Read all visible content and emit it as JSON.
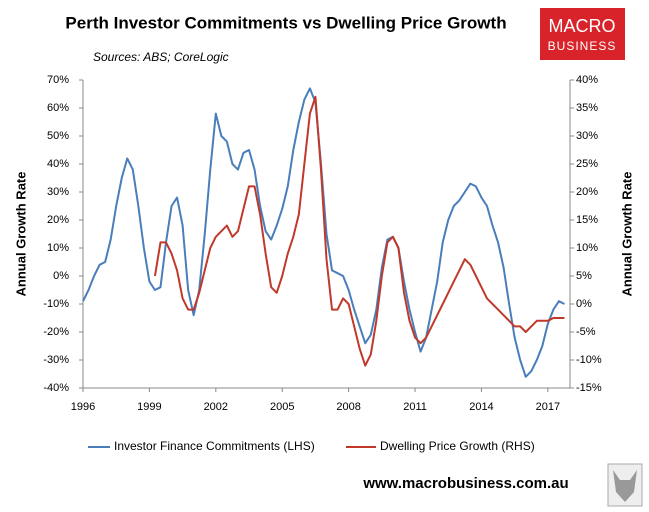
{
  "chart_data": {
    "type": "line",
    "title": "Perth Investor Commitments vs Dwelling Price Growth",
    "subtitle": "Sources: ABS; CoreLogic",
    "y_label": "Annual Growth Rate",
    "y2_label": "Annual Growth Rate",
    "logo_top": "MACRO",
    "logo_bottom": "BUSINESS",
    "website": "www.macrobusiness.com.au",
    "xlim": [
      1996,
      2018
    ],
    "xticks": [
      1996,
      1999,
      2002,
      2005,
      2008,
      2011,
      2014,
      2017
    ],
    "ylim": [
      -40,
      70
    ],
    "yticks": [
      {
        "value": -40,
        "label": "-40%"
      },
      {
        "value": -30,
        "label": "-30%"
      },
      {
        "value": -20,
        "label": "-20%"
      },
      {
        "value": -10,
        "label": "-10%"
      },
      {
        "value": 0,
        "label": "0%"
      },
      {
        "value": 10,
        "label": "10%"
      },
      {
        "value": 20,
        "label": "20%"
      },
      {
        "value": 30,
        "label": "30%"
      },
      {
        "value": 40,
        "label": "40%"
      },
      {
        "value": 50,
        "label": "50%"
      },
      {
        "value": 60,
        "label": "60%"
      },
      {
        "value": 70,
        "label": "70%"
      }
    ],
    "y2lim": [
      -15,
      40
    ],
    "y2ticks": [
      {
        "value": -15,
        "label": "-15%"
      },
      {
        "value": -10,
        "label": "-10%"
      },
      {
        "value": -5,
        "label": "-5%"
      },
      {
        "value": 0,
        "label": "0%"
      },
      {
        "value": 5,
        "label": "5%"
      },
      {
        "value": 10,
        "label": "10%"
      },
      {
        "value": 15,
        "label": "15%"
      },
      {
        "value": 20,
        "label": "20%"
      },
      {
        "value": 25,
        "label": "25%"
      },
      {
        "value": 30,
        "label": "30%"
      },
      {
        "value": 35,
        "label": "35%"
      },
      {
        "value": 40,
        "label": "40%"
      }
    ],
    "grid": false,
    "series": [
      {
        "name": "Investor Finance Commitments (LHS)",
        "color": "#4a7ebb",
        "axis": "y",
        "x": [
          1996,
          1996.25,
          1996.5,
          1996.75,
          1997,
          1997.25,
          1997.5,
          1997.75,
          1998,
          1998.25,
          1998.5,
          1998.75,
          1999,
          1999.25,
          1999.5,
          1999.75,
          2000,
          2000.25,
          2000.5,
          2000.75,
          2001,
          2001.25,
          2001.5,
          2001.75,
          2002,
          2002.25,
          2002.5,
          2002.75,
          2003,
          2003.25,
          2003.5,
          2003.75,
          2004,
          2004.25,
          2004.5,
          2004.75,
          2005,
          2005.25,
          2005.5,
          2005.75,
          2006,
          2006.25,
          2006.5,
          2006.75,
          2007,
          2007.25,
          2007.5,
          2007.75,
          2008,
          2008.25,
          2008.5,
          2008.75,
          2009,
          2009.25,
          2009.5,
          2009.75,
          2010,
          2010.25,
          2010.5,
          2010.75,
          2011,
          2011.25,
          2011.5,
          2011.75,
          2012,
          2012.25,
          2012.5,
          2012.75,
          2013,
          2013.25,
          2013.5,
          2013.75,
          2014,
          2014.25,
          2014.5,
          2014.75,
          2015,
          2015.25,
          2015.5,
          2015.75,
          2016,
          2016.25,
          2016.5,
          2016.75,
          2017,
          2017.25,
          2017.5,
          2017.75
        ],
        "values": [
          -9,
          -5,
          0,
          4,
          5,
          13,
          25,
          35,
          42,
          38,
          25,
          10,
          -2,
          -5,
          -4,
          12,
          25,
          28,
          18,
          -5,
          -14,
          -5,
          15,
          38,
          58,
          50,
          48,
          40,
          38,
          44,
          45,
          38,
          25,
          16,
          13,
          18,
          24,
          32,
          45,
          55,
          63,
          67,
          62,
          40,
          15,
          2,
          1,
          0,
          -5,
          -12,
          -18,
          -24,
          -21,
          -12,
          3,
          13,
          14,
          10,
          -2,
          -12,
          -20,
          -27,
          -22,
          -12,
          -2,
          12,
          20,
          25,
          27,
          30,
          33,
          32,
          28,
          25,
          18,
          12,
          3,
          -10,
          -22,
          -30,
          -36,
          -34,
          -30,
          -25,
          -17,
          -12,
          -9,
          -10
        ]
      },
      {
        "name": "Dwelling Price Growth (RHS)",
        "color": "#c0392b",
        "axis": "y2",
        "x": [
          1999.25,
          1999.5,
          1999.75,
          2000,
          2000.25,
          2000.5,
          2000.75,
          2001,
          2001.25,
          2001.5,
          2001.75,
          2002,
          2002.25,
          2002.5,
          2002.75,
          2003,
          2003.25,
          2003.5,
          2003.75,
          2004,
          2004.25,
          2004.5,
          2004.75,
          2005,
          2005.25,
          2005.5,
          2005.75,
          2006,
          2006.25,
          2006.5,
          2006.75,
          2007,
          2007.25,
          2007.5,
          2007.75,
          2008,
          2008.25,
          2008.5,
          2008.75,
          2009,
          2009.25,
          2009.5,
          2009.75,
          2010,
          2010.25,
          2010.5,
          2010.75,
          2011,
          2011.25,
          2011.5,
          2011.75,
          2012,
          2012.25,
          2012.5,
          2012.75,
          2013,
          2013.25,
          2013.5,
          2013.75,
          2014,
          2014.25,
          2014.5,
          2014.75,
          2015,
          2015.25,
          2015.5,
          2015.75,
          2016,
          2016.25,
          2016.5,
          2016.75,
          2017,
          2017.25,
          2017.5,
          2017.75
        ],
        "values": [
          5,
          11,
          11,
          9,
          6,
          1,
          -1,
          -1,
          2,
          6,
          10,
          12,
          13,
          14,
          12,
          13,
          17,
          21,
          21,
          16,
          9,
          3,
          2,
          5,
          9,
          12,
          16,
          25,
          34,
          37,
          24,
          8,
          -1,
          -1,
          1,
          0,
          -4,
          -8,
          -11,
          -9,
          -3,
          5,
          11,
          12,
          10,
          2,
          -3,
          -6,
          -7,
          -6,
          -4,
          -2,
          0,
          2,
          4,
          6,
          8,
          7,
          5,
          3,
          1,
          0,
          -1,
          -2,
          -3,
          -4,
          -4,
          -5,
          -4,
          -3,
          -3,
          -3,
          -2.5,
          -2.5,
          -2.5
        ]
      }
    ]
  }
}
